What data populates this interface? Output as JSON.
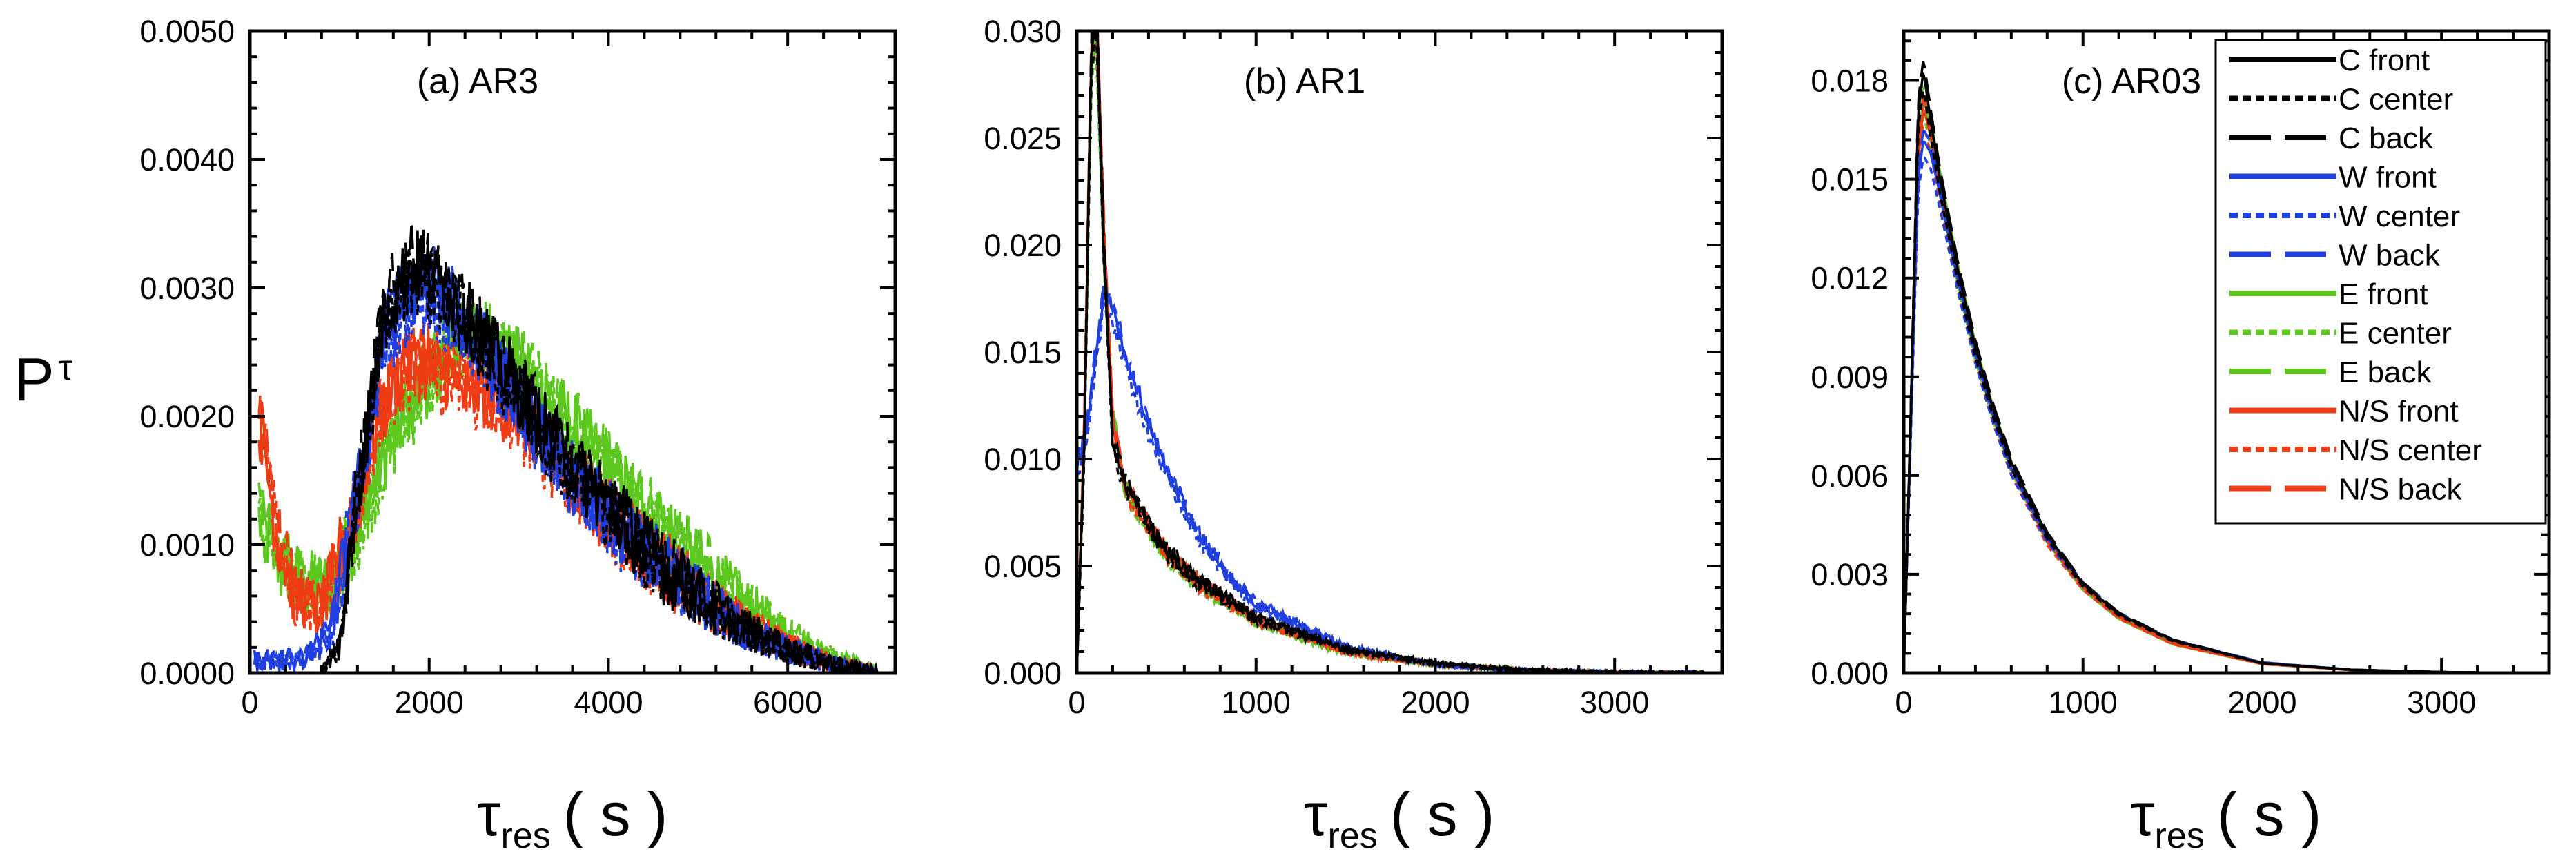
{
  "figure": {
    "ylabel_main": "P",
    "ylabel_sub": "τ",
    "xlabel_main": "τ",
    "xlabel_sub": "res",
    "xlabel_unit": "( s )"
  },
  "legend": {
    "placement": "top-right of panel (c)",
    "entries": [
      {
        "label": "C front",
        "color": "#000000",
        "dash": "solid"
      },
      {
        "label": "C center",
        "color": "#000000",
        "dash": "dotted"
      },
      {
        "label": "C back",
        "color": "#000000",
        "dash": "dashed"
      },
      {
        "label": "W front",
        "color": "#1f3fe0",
        "dash": "solid"
      },
      {
        "label": "W center",
        "color": "#1f3fe0",
        "dash": "dotted"
      },
      {
        "label": "W back",
        "color": "#1f3fe0",
        "dash": "dashed"
      },
      {
        "label": "E front",
        "color": "#5cc81e",
        "dash": "solid"
      },
      {
        "label": "E center",
        "color": "#5cc81e",
        "dash": "dotted"
      },
      {
        "label": "E back",
        "color": "#5cc81e",
        "dash": "dashed"
      },
      {
        "label": "N/S front",
        "color": "#f03c14",
        "dash": "solid"
      },
      {
        "label": "N/S center",
        "color": "#f03c14",
        "dash": "dotted"
      },
      {
        "label": "N/S back",
        "color": "#f03c14",
        "dash": "dashed"
      }
    ]
  },
  "chart_data": [
    {
      "type": "line",
      "title": "(a) AR3",
      "xlim": [
        0,
        7200
      ],
      "ylim": [
        0,
        0.005
      ],
      "xticks": [
        0,
        2000,
        4000,
        6000
      ],
      "xtick_labels": [
        "0",
        "2000",
        "4000",
        "6000"
      ],
      "yticks": [
        0,
        0.001,
        0.002,
        0.003,
        0.004,
        0.005
      ],
      "ytick_labels": [
        "0.0000",
        "0.0010",
        "0.0020",
        "0.0030",
        "0.0040",
        "0.0050"
      ],
      "noise": 0.0003,
      "series": [
        {
          "name": "E",
          "color": "#5cc81e",
          "x": [
            100,
            300,
            600,
            900,
            1200,
            1500,
            1800,
            2000,
            2300,
            2600,
            3000,
            3500,
            4000,
            4500,
            5000,
            5500,
            6000,
            6500,
            7000
          ],
          "y": [
            0.0012,
            0.0009,
            0.0007,
            0.0007,
            0.0011,
            0.0017,
            0.0021,
            0.0023,
            0.0026,
            0.0026,
            0.0024,
            0.002,
            0.0016,
            0.0012,
            0.00085,
            0.00055,
            0.0003,
            0.00012,
            0.0
          ]
        },
        {
          "name": "N/S",
          "color": "#f03c14",
          "x": [
            100,
            300,
            500,
            800,
            1100,
            1400,
            1700,
            2000,
            2300,
            2600,
            3000,
            3500,
            4000,
            4500,
            5000,
            5500,
            6000,
            6500,
            7000
          ],
          "y": [
            0.002,
            0.0011,
            0.0006,
            0.0005,
            0.0011,
            0.0019,
            0.0024,
            0.0024,
            0.0023,
            0.0022,
            0.002,
            0.0016,
            0.0012,
            0.0009,
            0.0006,
            0.00037,
            0.0002,
            7e-05,
            0.0
          ]
        },
        {
          "name": "W",
          "color": "#1f3fe0",
          "x": [
            50,
            300,
            600,
            900,
            1200,
            1500,
            1800,
            2000,
            2300,
            2600,
            3000,
            3500,
            4000,
            4500,
            5000,
            5500,
            6000,
            6500,
            7000
          ],
          "y": [
            0.0001,
            0.0001,
            0.0001,
            0.0003,
            0.0014,
            0.0026,
            0.003,
            0.003,
            0.0028,
            0.0025,
            0.0021,
            0.0016,
            0.0012,
            0.0009,
            0.0006,
            0.00035,
            0.00018,
            6e-05,
            0.0
          ]
        },
        {
          "name": "C",
          "color": "#000000",
          "x": [
            50,
            400,
            800,
            1000,
            1200,
            1500,
            1800,
            2000,
            2300,
            2600,
            3000,
            3500,
            4000,
            4500,
            5000,
            5500,
            6000,
            6500,
            7000
          ],
          "y": [
            0.0,
            0.0,
            0.0,
            0.0002,
            0.0014,
            0.0028,
            0.0032,
            0.0031,
            0.0029,
            0.0026,
            0.0022,
            0.0017,
            0.0013,
            0.0009,
            0.0006,
            0.00035,
            0.00018,
            6e-05,
            0.0
          ]
        }
      ]
    },
    {
      "type": "line",
      "title": "(b) AR1",
      "xlim": [
        0,
        3600
      ],
      "ylim": [
        0,
        0.03
      ],
      "xticks": [
        0,
        1000,
        2000,
        3000
      ],
      "xtick_labels": [
        "0",
        "1000",
        "2000",
        "3000"
      ],
      "yticks": [
        0,
        0.005,
        0.01,
        0.015,
        0.02,
        0.025,
        0.03
      ],
      "ytick_labels": [
        "0.000",
        "0.005",
        "0.010",
        "0.015",
        "0.020",
        "0.025",
        "0.030"
      ],
      "noise": 0.0004,
      "series": [
        {
          "name": "E",
          "color": "#5cc81e",
          "x": [
            0,
            40,
            80,
            110,
            150,
            200,
            260,
            300,
            400,
            500,
            700,
            1000,
            1500,
            2000,
            2500,
            3000,
            3500
          ],
          "y": [
            0.0,
            0.01,
            0.028,
            0.03,
            0.02,
            0.012,
            0.0088,
            0.0082,
            0.0068,
            0.0055,
            0.004,
            0.0024,
            0.001,
            0.0004,
            0.00012,
            3e-05,
            0.0
          ]
        },
        {
          "name": "N/S",
          "color": "#f03c14",
          "x": [
            0,
            40,
            80,
            110,
            150,
            200,
            260,
            300,
            400,
            500,
            700,
            1000,
            1500,
            2000,
            2500,
            3000,
            3500
          ],
          "y": [
            0.0,
            0.011,
            0.029,
            0.031,
            0.021,
            0.012,
            0.009,
            0.0083,
            0.007,
            0.0056,
            0.0041,
            0.0025,
            0.001,
            0.0004,
            0.00012,
            3e-05,
            0.0
          ]
        },
        {
          "name": "W",
          "color": "#1f3fe0",
          "x": [
            0,
            50,
            100,
            150,
            200,
            250,
            300,
            400,
            500,
            600,
            700,
            850,
            1000,
            1500,
            2000,
            2500,
            3000,
            3500
          ],
          "y": [
            0.0095,
            0.011,
            0.0145,
            0.0175,
            0.017,
            0.0155,
            0.014,
            0.0115,
            0.0095,
            0.0078,
            0.0062,
            0.0045,
            0.0032,
            0.0012,
            0.0004,
            0.00012,
            3e-05,
            0.0
          ]
        },
        {
          "name": "C",
          "color": "#000000",
          "x": [
            0,
            40,
            80,
            110,
            150,
            200,
            260,
            300,
            400,
            500,
            700,
            1000,
            1500,
            2000,
            2500,
            3000,
            3500
          ],
          "y": [
            0.0,
            0.01,
            0.029,
            0.031,
            0.02,
            0.011,
            0.009,
            0.0085,
            0.007,
            0.0057,
            0.0042,
            0.0026,
            0.0011,
            0.00045,
            0.00014,
            4e-05,
            0.0
          ]
        }
      ]
    },
    {
      "type": "line",
      "title": "(c) AR03",
      "xlim": [
        0,
        3600
      ],
      "ylim": [
        0,
        0.0195
      ],
      "xticks": [
        0,
        1000,
        2000,
        3000
      ],
      "xtick_labels": [
        "0",
        "1000",
        "2000",
        "3000"
      ],
      "yticks": [
        0,
        0.003,
        0.006,
        0.009,
        0.012,
        0.015,
        0.018
      ],
      "ytick_labels": [
        "0.000",
        "0.003",
        "0.006",
        "0.009",
        "0.012",
        "0.015",
        "0.018"
      ],
      "noise": 0,
      "series": [
        {
          "name": "E",
          "color": "#5cc81e",
          "x": [
            0,
            40,
            80,
            110,
            150,
            200,
            300,
            400,
            500,
            600,
            800,
            1000,
            1200,
            1500,
            2000,
            2500,
            3000,
            3500
          ],
          "y": [
            0.0,
            0.008,
            0.016,
            0.0175,
            0.0165,
            0.015,
            0.0122,
            0.0098,
            0.0079,
            0.0063,
            0.0041,
            0.0026,
            0.0017,
            0.0009,
            0.00028,
            9e-05,
            3e-05,
            0.0
          ]
        },
        {
          "name": "N/S",
          "color": "#f03c14",
          "x": [
            0,
            40,
            80,
            110,
            150,
            200,
            300,
            400,
            500,
            600,
            800,
            1000,
            1200,
            1500,
            2000,
            2500,
            3000,
            3500
          ],
          "y": [
            0.0,
            0.008,
            0.0155,
            0.0172,
            0.0163,
            0.0148,
            0.0121,
            0.0097,
            0.0078,
            0.0062,
            0.004,
            0.0026,
            0.0017,
            0.0009,
            0.00028,
            9e-05,
            3e-05,
            0.0
          ]
        },
        {
          "name": "W",
          "color": "#1f3fe0",
          "x": [
            0,
            40,
            80,
            110,
            150,
            200,
            300,
            400,
            500,
            600,
            800,
            1000,
            1200,
            1500,
            2000,
            2500,
            3000,
            3500
          ],
          "y": [
            0.0,
            0.0075,
            0.015,
            0.0162,
            0.0158,
            0.0146,
            0.012,
            0.0097,
            0.0078,
            0.0062,
            0.0041,
            0.0027,
            0.0018,
            0.001,
            0.00032,
            0.0001,
            3e-05,
            0.0
          ]
        },
        {
          "name": "C",
          "color": "#000000",
          "x": [
            0,
            40,
            80,
            110,
            150,
            200,
            300,
            400,
            500,
            600,
            800,
            1000,
            1200,
            1500,
            2000,
            2500,
            3000,
            3500
          ],
          "y": [
            0.0,
            0.008,
            0.017,
            0.0183,
            0.0168,
            0.0151,
            0.0123,
            0.0099,
            0.008,
            0.0064,
            0.0042,
            0.0027,
            0.0018,
            0.001,
            0.0003,
            0.0001,
            3e-05,
            0.0
          ]
        }
      ]
    }
  ]
}
